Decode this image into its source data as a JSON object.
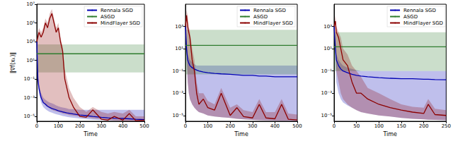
{
  "chart_data": [
    {
      "type": "line",
      "log": "y",
      "grid": false,
      "legend": "top-right",
      "x_label": "Time",
      "y_label": "‖∇f(xₖ)‖",
      "x": [
        0,
        5,
        10,
        20,
        30,
        40,
        50,
        60,
        70,
        80,
        90,
        100,
        110,
        120,
        130,
        140,
        150,
        170,
        200,
        230,
        260,
        300,
        330,
        360,
        400,
        430,
        460,
        500
      ],
      "xlim": [
        0,
        500
      ],
      "xticks": [
        0,
        100,
        200,
        300,
        400,
        500
      ],
      "ylim": [
        3e-06,
        10000000.0
      ],
      "yticks": [
        {
          "value": 1e-05,
          "label": "10⁻⁵"
        },
        {
          "value": 0.001,
          "label": "10⁻³"
        },
        {
          "value": 0.1,
          "label": "10⁻¹"
        },
        {
          "value": 10,
          "label": "10¹"
        },
        {
          "value": 1000,
          "label": "10³"
        },
        {
          "value": 100000,
          "label": "10⁵"
        },
        {
          "value": 10000000,
          "label": "10⁷"
        }
      ],
      "series": [
        {
          "name": "Rennala SGD",
          "color": "#0000b4",
          "values": [
            1000,
            0.1,
            0.01,
            0.001,
            0.0003,
            0.0002,
            0.00012,
            9e-05,
            7e-05,
            6e-05,
            5e-05,
            4e-05,
            3.5e-05,
            3e-05,
            2.7e-05,
            2.4e-05,
            2.2e-05,
            1.8e-05,
            1.4e-05,
            1.2e-05,
            1e-05,
            8e-06,
            7e-06,
            6.5e-06,
            6e-06,
            5.5e-06,
            5e-06,
            4.5e-06
          ],
          "upper": [
            1000,
            0.3,
            0.03,
            0.003,
            0.001,
            0.0006,
            0.0004,
            0.0003,
            0.00025,
            0.0002,
            0.00015,
            0.00012,
            0.0001,
            9e-05,
            8e-05,
            7e-05,
            6e-05,
            6e-05,
            5e-05,
            5e-05,
            5e-05,
            5e-05,
            5e-05,
            5e-05,
            5e-05,
            5e-05,
            5e-05,
            5e-05
          ],
          "lower": [
            1000,
            0.03,
            0.003,
            0.0003,
            0.0001,
            6e-05,
            4e-05,
            3e-05,
            2.5e-05,
            2e-05,
            1.7e-05,
            1.5e-05,
            1.3e-05,
            1.1e-05,
            1e-05,
            9e-06,
            8e-06,
            7e-06,
            6e-06,
            5e-06,
            4.5e-06,
            4e-06,
            3.8e-06,
            3.6e-06,
            3.5e-06,
            3.4e-06,
            3.3e-06,
            3.2e-06
          ]
        },
        {
          "name": "ASGD",
          "color": "#2e7d2e",
          "values": [
            50,
            50,
            50,
            50,
            50,
            50,
            50,
            50,
            50,
            50,
            50,
            50,
            50,
            50,
            50,
            50,
            50,
            50,
            50,
            50,
            50,
            50,
            50,
            50,
            50,
            50,
            50,
            50
          ],
          "upper": [
            500,
            500,
            500,
            500,
            500,
            500,
            500,
            500,
            500,
            500,
            500,
            500,
            500,
            500,
            500,
            500,
            500,
            500,
            500,
            500,
            500,
            500,
            500,
            500,
            500,
            500,
            500,
            500
          ],
          "lower": [
            0.5,
            0.5,
            0.5,
            0.5,
            0.5,
            0.5,
            0.5,
            0.5,
            0.5,
            0.5,
            0.5,
            0.5,
            0.5,
            0.5,
            0.5,
            0.5,
            0.5,
            0.5,
            0.5,
            0.5,
            0.5,
            0.5,
            0.5,
            0.5,
            0.5,
            0.5,
            0.5,
            0.5
          ]
        },
        {
          "name": "MindFlayer SGD",
          "color": "#8b0000",
          "values": [
            1000,
            3000.0,
            10000.0,
            3000.0,
            10000.0,
            100000.0,
            30000.0,
            300000.0,
            1000000.0,
            100000.0,
            10000.0,
            30000.0,
            1000.0,
            100,
            0.1,
            0.01,
            0.001,
            0.0001,
            1e-05,
            8e-06,
            5e-05,
            5e-06,
            4e-06,
            1e-05,
            4e-06,
            2e-05,
            3.5e-06,
            4e-06
          ],
          "upper": [
            1000,
            10000.0,
            30000.0,
            10000.0,
            30000.0,
            300000.0,
            100000.0,
            1000000.0,
            3000000.0,
            300000.0,
            30000.0,
            100000.0,
            3000.0,
            300,
            1,
            0.1,
            0.01,
            0.001,
            0.0001,
            3e-05,
            0.0001,
            3e-05,
            2e-05,
            3e-05,
            2e-05,
            5e-05,
            1e-05,
            1e-05
          ],
          "lower": [
            1000,
            0.1,
            0.01,
            0.001,
            0.0003,
            0.00015,
            0.0001,
            7e-05,
            5e-05,
            4e-05,
            3.5e-05,
            3e-05,
            2.5e-05,
            2e-05,
            1.8e-05,
            1.6e-05,
            1.4e-05,
            1.2e-05,
            1e-05,
            8e-06,
            6e-06,
            5e-06,
            4e-06,
            3.5e-06,
            3.2e-06,
            3.1e-06,
            3e-06,
            3e-06
          ]
        }
      ]
    },
    {
      "type": "line",
      "log": "y",
      "grid": false,
      "legend": "top-right",
      "x_label": "Time",
      "x": [
        0,
        5,
        10,
        15,
        20,
        30,
        40,
        50,
        60,
        80,
        100,
        130,
        160,
        200,
        230,
        260,
        300,
        330,
        360,
        400,
        430,
        460,
        500
      ],
      "xlim": [
        0,
        500
      ],
      "xticks": [
        0,
        100,
        200,
        300,
        400,
        500
      ],
      "ylim": [
        3e-06,
        100000.0
      ],
      "yticks": [
        {
          "value": 1e-05,
          "label": "10⁻⁵"
        },
        {
          "value": 0.001,
          "label": "10⁻³"
        },
        {
          "value": 0.1,
          "label": "10⁻¹"
        },
        {
          "value": 10,
          "label": "10¹"
        },
        {
          "value": 1000,
          "label": "10³"
        }
      ],
      "series": [
        {
          "name": "Rennala SGD",
          "color": "#0000b4",
          "values": [
            1000,
            10,
            1,
            0.5,
            0.3,
            0.2,
            0.15,
            0.12,
            0.1,
            0.08,
            0.07,
            0.06,
            0.055,
            0.05,
            0.045,
            0.04,
            0.04,
            0.035,
            0.035,
            0.03,
            0.03,
            0.03,
            0.03
          ],
          "upper": [
            1000,
            30,
            3,
            1.5,
            1,
            0.6,
            0.4,
            0.3,
            0.3,
            0.3,
            0.3,
            0.3,
            0.3,
            0.3,
            0.3,
            0.3,
            0.3,
            0.3,
            0.3,
            0.3,
            0.3,
            0.3,
            0.3
          ],
          "lower": [
            1000,
            1,
            0.01,
            0.001,
            0.0003,
            0.0001,
            5e-05,
            3e-05,
            2e-05,
            1.5e-05,
            1e-05,
            8e-06,
            7e-06,
            6e-06,
            5e-06,
            4.5e-06,
            4e-06,
            3.8e-06,
            3.6e-06,
            3.5e-06,
            3.4e-06,
            3.3e-06,
            3.2e-06
          ]
        },
        {
          "name": "ASGD",
          "color": "#2e7d2e",
          "values": [
            20,
            20,
            20,
            20,
            20,
            20,
            20,
            20,
            20,
            20,
            20,
            20,
            20,
            20,
            20,
            20,
            20,
            20,
            20,
            20,
            20,
            20,
            20
          ],
          "upper": [
            500,
            500,
            500,
            500,
            500,
            500,
            500,
            500,
            500,
            500,
            500,
            500,
            500,
            500,
            500,
            500,
            500,
            500,
            500,
            500,
            500,
            500,
            500
          ],
          "lower": [
            0.05,
            0.05,
            0.05,
            0.05,
            0.05,
            0.05,
            0.05,
            0.05,
            0.05,
            0.05,
            0.05,
            0.05,
            0.05,
            0.05,
            0.05,
            0.05,
            0.05,
            0.05,
            0.05,
            0.05,
            0.05,
            0.05,
            0.05
          ]
        },
        {
          "name": "MindFlayer SGD",
          "color": "#8b0000",
          "values": [
            1000,
            10000.0,
            1000.0,
            300,
            100,
            1,
            0.1,
            0.001,
            0.0001,
            0.0003,
            5e-05,
            3e-05,
            0.001,
            1e-05,
            5e-05,
            8e-06,
            6e-06,
            0.0001,
            6e-06,
            5e-06,
            0.0001,
            4.5e-06,
            4e-06
          ],
          "upper": [
            1000,
            30000.0,
            10000.0,
            1000.0,
            300,
            10,
            1,
            0.01,
            0.001,
            0.001,
            0.0002,
            0.0001,
            0.003,
            5e-05,
            0.0001,
            3e-05,
            2e-05,
            0.0003,
            2e-05,
            2e-05,
            0.0003,
            1.5e-05,
            1.2e-05
          ],
          "lower": [
            1000,
            10,
            0.01,
            0.001,
            0.0003,
            0.0001,
            5e-05,
            3e-05,
            2e-05,
            1.5e-05,
            1e-05,
            8e-06,
            7e-06,
            6e-06,
            5e-06,
            4.5e-06,
            4e-06,
            3.8e-06,
            3.6e-06,
            3.5e-06,
            3.4e-06,
            3.3e-06,
            3.2e-06
          ]
        }
      ]
    },
    {
      "type": "line",
      "log": "y",
      "grid": false,
      "legend": "top-right",
      "x_label": "Time",
      "x": [
        0,
        3,
        5,
        10,
        15,
        20,
        30,
        40,
        50,
        60,
        75,
        100,
        125,
        150,
        175,
        200,
        210,
        225,
        250
      ],
      "xlim": [
        0,
        250
      ],
      "xticks": [
        0,
        50,
        100,
        150,
        200,
        250
      ],
      "ylim": [
        3e-06,
        100000.0
      ],
      "yticks": [
        {
          "value": 1e-05,
          "label": "10⁻⁵"
        },
        {
          "value": 0.001,
          "label": "10⁻³"
        },
        {
          "value": 0.1,
          "label": "10⁻¹"
        },
        {
          "value": 10,
          "label": "10¹"
        },
        {
          "value": 1000,
          "label": "10³"
        }
      ],
      "series": [
        {
          "name": "Rennala SGD",
          "color": "#0000b4",
          "values": [
            1000,
            10,
            1,
            0.3,
            0.15,
            0.1,
            0.07,
            0.05,
            0.04,
            0.035,
            0.03,
            0.025,
            0.022,
            0.02,
            0.02,
            0.018,
            0.018,
            0.017,
            0.016
          ],
          "upper": [
            1000,
            30,
            3,
            1,
            0.5,
            0.3,
            0.2,
            0.15,
            0.12,
            0.1,
            0.1,
            0.1,
            0.1,
            0.1,
            0.1,
            0.1,
            0.1,
            0.1,
            0.1
          ],
          "lower": [
            1000,
            1,
            0.01,
            0.001,
            0.0003,
            0.00015,
            8e-05,
            5e-05,
            3e-05,
            2e-05,
            1.5e-05,
            1e-05,
            8e-06,
            6e-06,
            5e-06,
            4.5e-06,
            4.2e-06,
            4e-06,
            3.8e-06
          ]
        },
        {
          "name": "ASGD",
          "color": "#2e7d2e",
          "values": [
            15,
            15,
            15,
            15,
            15,
            15,
            15,
            15,
            15,
            15,
            15,
            15,
            15,
            15,
            15,
            15,
            15,
            15,
            15
          ],
          "upper": [
            300,
            300,
            300,
            300,
            300,
            300,
            300,
            300,
            300,
            300,
            300,
            300,
            300,
            300,
            300,
            300,
            300,
            300,
            300
          ],
          "lower": [
            0.1,
            0.1,
            0.1,
            0.1,
            0.1,
            0.1,
            0.1,
            0.1,
            0.1,
            0.1,
            0.1,
            0.1,
            0.1,
            0.1,
            0.1,
            0.1,
            0.1,
            0.1,
            0.1
          ]
        },
        {
          "name": "MindFlayer SGD",
          "color": "#8b0000",
          "values": [
            1000,
            3000.0,
            300,
            100,
            10,
            1,
            0.3,
            0.01,
            0.001,
            0.001,
            0.0003,
            0.0001,
            5e-05,
            3e-05,
            2e-05,
            1.5e-05,
            0.0001,
            1.2e-05,
            1e-05
          ],
          "upper": [
            1000,
            10000.0,
            1000.0,
            300,
            100,
            10,
            3,
            0.3,
            0.1,
            0.03,
            0.003,
            0.001,
            0.0003,
            0.0001,
            6e-05,
            5e-05,
            0.0003,
            4e-05,
            3e-05
          ],
          "lower": [
            1000,
            10,
            0.1,
            0.01,
            0.001,
            0.0003,
            0.0001,
            5e-05,
            3e-05,
            2e-05,
            1.5e-05,
            1e-05,
            8e-06,
            6e-06,
            5e-06,
            4.5e-06,
            4.2e-06,
            4e-06,
            3.8e-06
          ]
        }
      ]
    }
  ]
}
